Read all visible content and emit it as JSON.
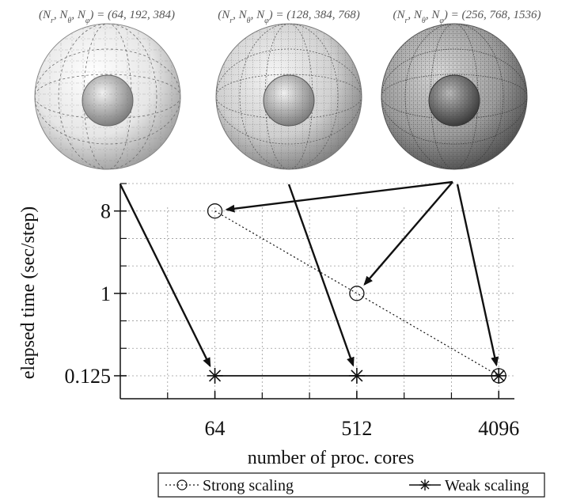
{
  "captions": [
    "(N_r, N_θ, N_φ) = (64, 192, 384)",
    "(N_r, N_θ, N_φ) = (128, 384, 768)",
    "(N_r, N_θ, N_φ) = (256, 768, 1536)"
  ],
  "chart_data": {
    "type": "line",
    "xscale": "log2",
    "yscale": "log2",
    "categories": [
      "64",
      "512",
      "4096"
    ],
    "x": [
      64,
      512,
      4096
    ],
    "xlabel": "number of proc. cores",
    "ylabel": "elapsed time (sec/step)",
    "yticks": [
      "8",
      "1",
      "0.125"
    ],
    "ytick_values": [
      8,
      1,
      0.125
    ],
    "xlim": [
      16,
      8192
    ],
    "ylim": [
      0.07,
      16
    ],
    "grid": true,
    "legend_position": "bottom",
    "series": [
      {
        "name": "Strong scaling",
        "x": [
          64,
          512,
          4096
        ],
        "values": [
          8,
          1,
          0.125
        ],
        "marker": "circle",
        "line": "dotted"
      },
      {
        "name": "Weak scaling",
        "x": [
          64,
          512,
          4096
        ],
        "values": [
          0.125,
          0.125,
          0.125
        ],
        "marker": "asterisk",
        "line": "solid"
      }
    ]
  }
}
